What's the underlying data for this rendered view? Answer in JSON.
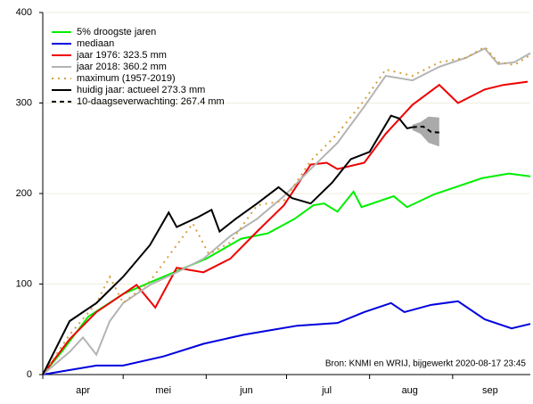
{
  "chart_data": {
    "type": "line",
    "annotation": "Bron: KNMI en WRIJ, bijgewerkt 2020-08-17 23:45",
    "xlim": [
      0,
      182
    ],
    "ylim": [
      0,
      400
    ],
    "yticks": [
      0,
      100,
      200,
      300,
      400
    ],
    "grid": true,
    "legend": "top-left",
    "xticks": [
      {
        "value": 15,
        "label": "apr"
      },
      {
        "value": 45,
        "label": "mei"
      },
      {
        "value": 76,
        "label": "jun"
      },
      {
        "value": 106,
        "label": "jul"
      },
      {
        "value": 137,
        "label": "aug"
      },
      {
        "value": 167,
        "label": "sep"
      }
    ],
    "xminor": [
      0,
      30,
      61,
      91,
      122,
      153
    ],
    "series": [
      {
        "name": "5% droogste jaren",
        "color": "#00ee00",
        "dash": "solid",
        "x": [
          0,
          7,
          17,
          30,
          41,
          61,
          74,
          84,
          94,
          101,
          105,
          110,
          116,
          119,
          131,
          136,
          146,
          154,
          164,
          174,
          182
        ],
        "values": [
          0,
          25,
          64,
          89,
          103,
          128,
          150,
          156,
          172,
          187,
          189,
          180,
          202,
          185,
          197,
          185,
          199,
          207,
          217,
          222,
          219
        ]
      },
      {
        "name": "mediaan",
        "color": "#0000dd",
        "dash": "solid",
        "x": [
          0,
          20,
          30,
          45,
          60,
          75,
          85,
          95,
          110,
          120,
          130,
          135,
          145,
          155,
          165,
          175,
          182
        ],
        "values": [
          0,
          10,
          10,
          20,
          34,
          44,
          49,
          54,
          57,
          69,
          79,
          69,
          77,
          81,
          61,
          51,
          56
        ]
      },
      {
        "name": "jaar 1976: 323.5 mm",
        "color": "#ee0000",
        "dash": "solid",
        "x": [
          0,
          10,
          20,
          30,
          35,
          42,
          50,
          60,
          70,
          80,
          90,
          100,
          106,
          110,
          120,
          128,
          138,
          148,
          155,
          165,
          172,
          181
        ],
        "values": [
          0,
          39,
          69,
          89,
          99,
          74,
          118,
          113,
          128,
          158,
          187,
          232,
          234,
          227,
          234,
          266,
          298,
          320,
          300,
          315,
          320,
          323.5
        ]
      },
      {
        "name": "jaar 2018: 360.2 mm",
        "color": "#b4b4b4",
        "dash": "solid",
        "x": [
          0,
          10,
          15,
          20,
          25,
          30,
          40,
          50,
          60,
          70,
          80,
          90,
          100,
          110,
          120,
          128,
          138,
          148,
          158,
          165,
          170,
          176,
          182
        ],
        "values": [
          0,
          25,
          41,
          22,
          59,
          79,
          99,
          113,
          128,
          153,
          172,
          197,
          227,
          256,
          296,
          330,
          325,
          340,
          350,
          360.2,
          343,
          345,
          355
        ]
      },
      {
        "name": "maximum (1957-2019)",
        "color": "#d4a040",
        "dash": "dotted",
        "x": [
          0,
          10,
          20,
          25,
          30,
          40,
          50,
          56,
          62,
          70,
          80,
          90,
          100,
          110,
          120,
          128,
          138,
          148,
          158,
          165,
          170,
          176,
          182
        ],
        "values": [
          0,
          44,
          79,
          108,
          79,
          103,
          143,
          167,
          133,
          146,
          187,
          192,
          236,
          266,
          303,
          337,
          330,
          345,
          350,
          362,
          345,
          342,
          353
        ]
      },
      {
        "name": "huidig jaar: actueel 273.3 mm",
        "color": "#000000",
        "dash": "solid",
        "x": [
          0,
          10,
          20,
          30,
          40,
          47,
          50,
          58,
          63,
          66,
          72,
          80,
          88,
          93,
          100,
          108,
          115,
          122,
          130,
          133,
          136,
          138
        ],
        "values": [
          0,
          59,
          79,
          108,
          143,
          179,
          163,
          174,
          182,
          158,
          172,
          189,
          207,
          195,
          189,
          212,
          238,
          246,
          286,
          283,
          272,
          273.3
        ]
      },
      {
        "name": "10-daagseverwachting: 267.4 mm",
        "color": "#000000",
        "dash": "dashed",
        "x": [
          138,
          142,
          145,
          148
        ],
        "values": [
          273.3,
          274,
          268,
          267.4
        ]
      }
    ],
    "forecast_range": {
      "color": "#aaaaaa",
      "x": [
        138,
        141,
        144,
        148
      ],
      "low": [
        270,
        266,
        256,
        252
      ],
      "high": [
        276,
        279,
        285,
        284
      ]
    }
  }
}
